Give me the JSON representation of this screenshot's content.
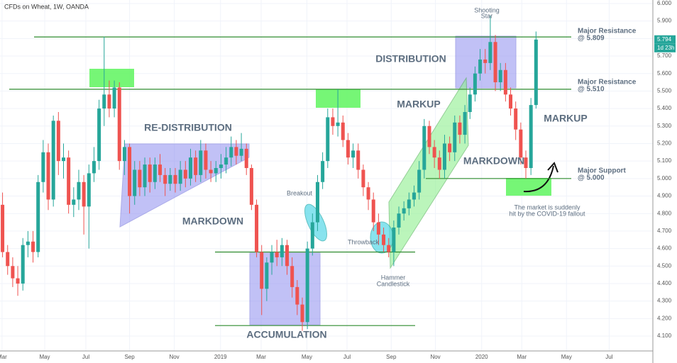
{
  "chart_data": {
    "type": "candlestick",
    "title": "CFDs on Wheat, 1W, OANDA",
    "up_color": "#26a69a",
    "down_color": "#ef5350",
    "grid": true,
    "ylim": [
      4.015,
      6.02
    ],
    "xlim": [
      -0.5,
      128
    ],
    "yticks": [
      {
        "value": 4.1,
        "label": "4.100"
      },
      {
        "value": 4.2,
        "label": "4.200"
      },
      {
        "value": 4.3,
        "label": "4.300"
      },
      {
        "value": 4.4,
        "label": "4.400"
      },
      {
        "value": 4.5,
        "label": "4.500"
      },
      {
        "value": 4.6,
        "label": "4.600"
      },
      {
        "value": 4.7,
        "label": "4.700"
      },
      {
        "value": 4.8,
        "label": "4.800"
      },
      {
        "value": 4.9,
        "label": "4.900"
      },
      {
        "value": 5.0,
        "label": "5.000"
      },
      {
        "value": 5.1,
        "label": "5.100"
      },
      {
        "value": 5.2,
        "label": "5.200"
      },
      {
        "value": 5.3,
        "label": "5.300"
      },
      {
        "value": 5.4,
        "label": "5.400"
      },
      {
        "value": 5.5,
        "label": "5.500"
      },
      {
        "value": 5.6,
        "label": "5.600"
      },
      {
        "value": 5.7,
        "label": "5.700"
      },
      {
        "value": 5.8,
        "label": "5.800"
      },
      {
        "value": 5.9,
        "label": "5.900"
      },
      {
        "value": 6.0,
        "label": "6.000"
      }
    ],
    "xticks": [
      {
        "value": -0.1,
        "label": "Mar"
      },
      {
        "value": 8.3,
        "label": "May"
      },
      {
        "value": 16.4,
        "label": "Jul"
      },
      {
        "value": 25,
        "label": "Sep"
      },
      {
        "value": 33.8,
        "label": "Nov"
      },
      {
        "value": 42.9,
        "label": "2019"
      },
      {
        "value": 50.9,
        "label": "Mar"
      },
      {
        "value": 59.9,
        "label": "May"
      },
      {
        "value": 67.8,
        "label": "Jul"
      },
      {
        "value": 76.5,
        "label": "Sep"
      },
      {
        "value": 85.2,
        "label": "Nov"
      },
      {
        "value": 94.3,
        "label": "2020"
      },
      {
        "value": 102.2,
        "label": "Mar"
      },
      {
        "value": 111,
        "label": "May"
      },
      {
        "value": 119.4,
        "label": "Jul"
      }
    ],
    "ohlc": [
      [
        4.85,
        4.92,
        4.55,
        4.58
      ],
      [
        4.58,
        4.62,
        4.45,
        4.5
      ],
      [
        4.5,
        4.55,
        4.38,
        4.43
      ],
      [
        4.43,
        4.5,
        4.33,
        4.4
      ],
      [
        4.4,
        4.66,
        4.36,
        4.62
      ],
      [
        4.62,
        4.7,
        4.55,
        4.64
      ],
      [
        4.64,
        4.7,
        4.52,
        4.58
      ],
      [
        4.58,
        5.02,
        4.55,
        4.98
      ],
      [
        4.98,
        5.22,
        4.92,
        5.15
      ],
      [
        5.15,
        5.2,
        4.82,
        4.88
      ],
      [
        4.88,
        5.36,
        4.84,
        5.33
      ],
      [
        5.33,
        5.38,
        5.02,
        5.1
      ],
      [
        5.1,
        5.2,
        5.0,
        5.12
      ],
      [
        5.12,
        5.16,
        4.8,
        4.85
      ],
      [
        4.85,
        4.95,
        4.78,
        4.88
      ],
      [
        4.88,
        5.05,
        4.82,
        4.98
      ],
      [
        4.98,
        5.02,
        4.68,
        4.84
      ],
      [
        4.84,
        5.08,
        4.6,
        5.03
      ],
      [
        5.03,
        5.18,
        4.98,
        5.1
      ],
      [
        5.1,
        5.45,
        5.05,
        5.4
      ],
      [
        5.4,
        5.81,
        5.3,
        5.48
      ],
      [
        5.48,
        5.56,
        5.35,
        5.4
      ],
      [
        5.4,
        5.56,
        5.35,
        5.52
      ],
      [
        5.52,
        5.55,
        5.05,
        5.1
      ],
      [
        5.1,
        5.22,
        5.02,
        5.18
      ],
      [
        5.18,
        5.2,
        4.8,
        4.9
      ],
      [
        4.9,
        5.1,
        4.85,
        5.05
      ],
      [
        5.05,
        5.1,
        4.9,
        4.95
      ],
      [
        4.95,
        5.12,
        4.9,
        5.08
      ],
      [
        5.08,
        5.12,
        4.92,
        4.98
      ],
      [
        4.98,
        5.12,
        4.94,
        5.08
      ],
      [
        5.08,
        5.14,
        4.98,
        5.02
      ],
      [
        5.02,
        5.06,
        4.9,
        4.97
      ],
      [
        4.97,
        5.06,
        4.93,
        5.02
      ],
      [
        5.02,
        5.06,
        4.92,
        4.97
      ],
      [
        4.97,
        5.1,
        4.93,
        5.05
      ],
      [
        5.05,
        5.1,
        4.95,
        5.0
      ],
      [
        5.0,
        5.17,
        4.96,
        5.12
      ],
      [
        5.12,
        5.16,
        4.98,
        5.02
      ],
      [
        5.02,
        5.22,
        4.98,
        5.16
      ],
      [
        5.16,
        5.2,
        5.0,
        5.05
      ],
      [
        5.05,
        5.1,
        4.98,
        5.03
      ],
      [
        5.03,
        5.1,
        4.98,
        5.06
      ],
      [
        5.06,
        5.14,
        5.0,
        5.08
      ],
      [
        5.08,
        5.18,
        5.03,
        5.12
      ],
      [
        5.12,
        5.24,
        5.07,
        5.18
      ],
      [
        5.18,
        5.22,
        5.08,
        5.13
      ],
      [
        5.13,
        5.26,
        5.1,
        5.17
      ],
      [
        5.17,
        5.2,
        5.02,
        5.06
      ],
      [
        5.06,
        5.08,
        4.82,
        4.85
      ],
      [
        4.85,
        4.88,
        4.55,
        4.58
      ],
      [
        4.58,
        4.62,
        4.22,
        4.37
      ],
      [
        4.37,
        4.55,
        4.3,
        4.52
      ],
      [
        4.52,
        4.62,
        4.45,
        4.58
      ],
      [
        4.58,
        4.65,
        4.5,
        4.55
      ],
      [
        4.55,
        4.66,
        4.5,
        4.62
      ],
      [
        4.62,
        4.65,
        4.45,
        4.5
      ],
      [
        4.5,
        4.55,
        4.32,
        4.38
      ],
      [
        4.38,
        4.42,
        4.22,
        4.28
      ],
      [
        4.28,
        4.32,
        4.13,
        4.18
      ],
      [
        4.18,
        4.64,
        4.14,
        4.6
      ],
      [
        4.6,
        4.8,
        4.56,
        4.75
      ],
      [
        4.75,
        5.02,
        4.7,
        4.98
      ],
      [
        4.98,
        5.15,
        4.94,
        5.1
      ],
      [
        5.1,
        5.4,
        5.06,
        5.35
      ],
      [
        5.35,
        5.4,
        5.25,
        5.3
      ],
      [
        5.3,
        5.51,
        5.24,
        5.32
      ],
      [
        5.32,
        5.36,
        5.18,
        5.22
      ],
      [
        5.22,
        5.26,
        5.08,
        5.12
      ],
      [
        5.12,
        5.2,
        5.06,
        5.16
      ],
      [
        5.16,
        5.2,
        5.0,
        5.05
      ],
      [
        5.05,
        5.08,
        4.9,
        4.95
      ],
      [
        4.95,
        4.98,
        4.82,
        4.88
      ],
      [
        4.88,
        4.92,
        4.7,
        4.75
      ],
      [
        4.75,
        4.8,
        4.62,
        4.68
      ],
      [
        4.68,
        4.72,
        4.58,
        4.62
      ],
      [
        4.62,
        4.66,
        4.55,
        4.58
      ],
      [
        4.58,
        4.76,
        4.5,
        4.72
      ],
      [
        4.72,
        4.84,
        4.68,
        4.8
      ],
      [
        4.8,
        4.87,
        4.76,
        4.83
      ],
      [
        4.83,
        4.92,
        4.79,
        4.88
      ],
      [
        4.88,
        4.96,
        4.84,
        4.92
      ],
      [
        4.92,
        5.1,
        4.88,
        5.05
      ],
      [
        5.05,
        5.34,
        5.0,
        5.3
      ],
      [
        5.3,
        5.33,
        5.14,
        5.18
      ],
      [
        5.18,
        5.22,
        5.06,
        5.12
      ],
      [
        5.12,
        5.16,
        5.0,
        5.05
      ],
      [
        5.05,
        5.25,
        5.0,
        5.2
      ],
      [
        5.2,
        5.24,
        5.1,
        5.15
      ],
      [
        5.15,
        5.36,
        5.1,
        5.32
      ],
      [
        5.32,
        5.36,
        5.2,
        5.25
      ],
      [
        5.25,
        5.42,
        5.2,
        5.38
      ],
      [
        5.38,
        5.52,
        5.34,
        5.48
      ],
      [
        5.48,
        5.64,
        5.44,
        5.6
      ],
      [
        5.6,
        5.74,
        5.56,
        5.68
      ],
      [
        5.68,
        5.74,
        5.6,
        5.66
      ],
      [
        5.66,
        5.93,
        5.62,
        5.78
      ],
      [
        5.78,
        5.82,
        5.5,
        5.55
      ],
      [
        5.55,
        5.66,
        5.5,
        5.62
      ],
      [
        5.62,
        5.66,
        5.44,
        5.48
      ],
      [
        5.48,
        5.52,
        5.36,
        5.4
      ],
      [
        5.4,
        5.44,
        5.22,
        5.28
      ],
      [
        5.28,
        5.32,
        5.08,
        5.12
      ],
      [
        5.12,
        5.16,
        5.0,
        5.06
      ],
      [
        5.06,
        5.46,
        5.02,
        5.42
      ],
      [
        5.42,
        5.84,
        5.4,
        5.794
      ]
    ],
    "levels": [
      5.809,
      5.51,
      5.0,
      4.58,
      4.16
    ],
    "last_price": {
      "value": 5.794,
      "label": "5.794"
    },
    "countdown": "1d 23h",
    "annotations": [
      [
        "RE-DISTRIBUTION"
      ],
      [
        "MARKDOWN"
      ],
      [
        "ACCUMULATION"
      ],
      [
        "Breakout"
      ],
      [
        "Throwback"
      ],
      [
        "Hammer",
        "Candlestick"
      ],
      [
        "MARKUP"
      ],
      [
        "DISTRIBUTION"
      ],
      [
        "Shooting",
        "Star"
      ],
      [
        "MARKUP"
      ],
      [
        "MARKDOWN"
      ],
      [
        "Major Resistance",
        "@ 5.809"
      ],
      [
        "Major Resistance",
        "@ 5.510"
      ],
      [
        "Major Support",
        "@ 5.000"
      ],
      [
        "The market is suddenly",
        "hit by the COVID-19 fallout"
      ]
    ]
  }
}
